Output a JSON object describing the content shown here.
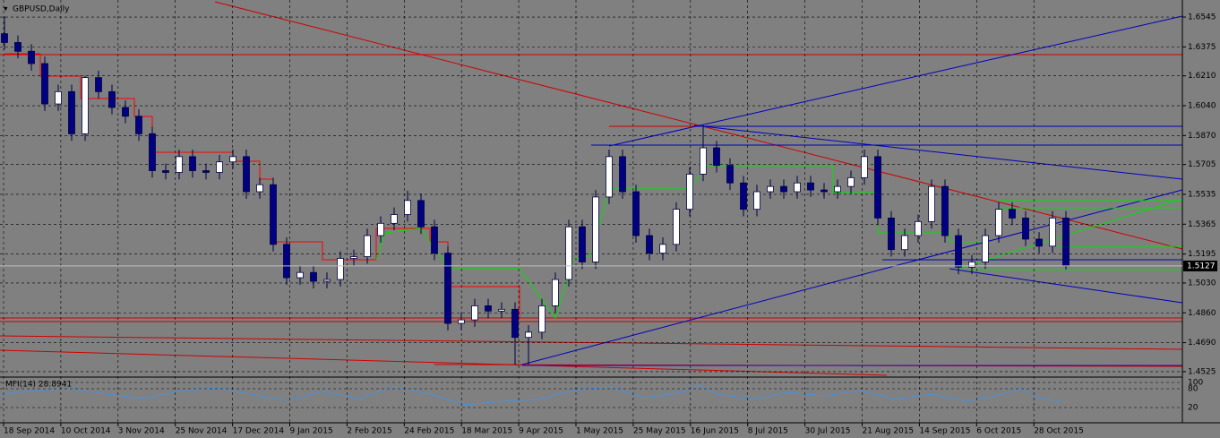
{
  "chart_data": {
    "type": "candlestick",
    "title": "GBPUSD,Daily",
    "x_tick_labels": [
      "18 Sep 2014",
      "10 Oct 2014",
      "3 Nov 2014",
      "25 Nov 2014",
      "17 Dec 2014",
      "9 Jan 2015",
      "2 Feb 2015",
      "24 Feb 2015",
      "18 Mar 2015",
      "9 Apr 2015",
      "1 May 2015",
      "25 May 2015",
      "16 Jun 2015",
      "8 Jul 2015",
      "30 Jul 2015",
      "21 Aug 2015",
      "14 Sep 2015",
      "6 Oct 2015",
      "28 Oct 2015"
    ],
    "open": [
      1.645,
      1.64,
      1.635,
      1.628,
      1.605,
      1.612,
      1.588,
      1.62,
      1.612,
      1.603,
      1.598,
      1.588,
      1.567,
      1.566,
      1.575,
      1.567,
      1.566,
      1.572,
      1.575,
      1.555,
      1.559,
      1.525,
      1.506,
      1.509,
      1.504,
      1.505,
      1.517,
      1.518,
      1.53,
      1.537,
      1.542,
      1.55,
      1.535,
      1.52,
      1.48,
      1.482,
      1.49,
      1.487,
      1.488,
      1.472,
      1.475,
      1.49,
      1.505,
      1.535,
      1.515,
      1.552,
      1.575,
      1.555,
      1.53,
      1.52,
      1.525,
      1.545,
      1.565,
      1.58,
      1.57,
      1.56,
      1.545,
      1.555,
      1.558,
      1.555,
      1.56,
      1.556,
      1.555,
      1.558,
      1.563,
      1.575,
      1.54,
      1.522,
      1.53,
      1.538,
      1.558,
      1.53,
      1.512,
      1.515,
      1.53,
      1.545,
      1.54,
      1.528,
      1.524,
      1.54
    ],
    "high": [
      1.655,
      1.644,
      1.639,
      1.632,
      1.616,
      1.616,
      1.621,
      1.624,
      1.616,
      1.607,
      1.602,
      1.592,
      1.571,
      1.579,
      1.579,
      1.571,
      1.576,
      1.579,
      1.579,
      1.563,
      1.563,
      1.529,
      1.513,
      1.513,
      1.509,
      1.521,
      1.522,
      1.534,
      1.541,
      1.546,
      1.5555,
      1.554,
      1.539,
      1.524,
      1.486,
      1.494,
      1.494,
      1.492,
      1.492,
      1.479,
      1.494,
      1.509,
      1.539,
      1.539,
      1.556,
      1.579,
      1.579,
      1.559,
      1.534,
      1.529,
      1.549,
      1.569,
      1.593,
      1.584,
      1.574,
      1.564,
      1.559,
      1.562,
      1.562,
      1.564,
      1.564,
      1.56,
      1.562,
      1.567,
      1.579,
      1.579,
      1.544,
      1.534,
      1.542,
      1.562,
      1.562,
      1.534,
      1.519,
      1.534,
      1.549,
      1.549,
      1.544,
      1.532,
      1.544,
      1.544
    ],
    "low": [
      1.636,
      1.631,
      1.624,
      1.601,
      1.601,
      1.584,
      1.584,
      1.608,
      1.599,
      1.594,
      1.584,
      1.563,
      1.562,
      1.562,
      1.563,
      1.562,
      1.562,
      1.568,
      1.551,
      1.551,
      1.521,
      1.502,
      1.502,
      1.5,
      1.5,
      1.501,
      1.513,
      1.514,
      1.526,
      1.533,
      1.538,
      1.531,
      1.516,
      1.476,
      1.476,
      1.478,
      1.483,
      1.483,
      1.4565,
      1.4565,
      1.471,
      1.486,
      1.501,
      1.511,
      1.511,
      1.548,
      1.551,
      1.526,
      1.516,
      1.516,
      1.521,
      1.541,
      1.561,
      1.566,
      1.556,
      1.541,
      1.541,
      1.551,
      1.551,
      1.551,
      1.552,
      1.551,
      1.551,
      1.554,
      1.559,
      1.536,
      1.518,
      1.518,
      1.526,
      1.534,
      1.526,
      1.508,
      1.508,
      1.511,
      1.526,
      1.536,
      1.524,
      1.52,
      1.52,
      1.5107
    ],
    "close": [
      1.64,
      1.635,
      1.628,
      1.605,
      1.612,
      1.588,
      1.62,
      1.612,
      1.603,
      1.598,
      1.588,
      1.567,
      1.566,
      1.575,
      1.567,
      1.566,
      1.572,
      1.575,
      1.555,
      1.559,
      1.525,
      1.506,
      1.509,
      1.504,
      1.505,
      1.517,
      1.518,
      1.53,
      1.537,
      1.542,
      1.55,
      1.535,
      1.52,
      1.48,
      1.482,
      1.49,
      1.487,
      1.488,
      1.472,
      1.475,
      1.49,
      1.505,
      1.535,
      1.515,
      1.552,
      1.575,
      1.555,
      1.53,
      1.52,
      1.525,
      1.545,
      1.565,
      1.58,
      1.57,
      1.56,
      1.545,
      1.555,
      1.558,
      1.555,
      1.56,
      1.556,
      1.555,
      1.558,
      1.563,
      1.575,
      1.54,
      1.522,
      1.53,
      1.538,
      1.558,
      1.53,
      1.512,
      1.515,
      1.53,
      1.545,
      1.54,
      1.528,
      1.524,
      1.54,
      1.5127
    ],
    "ylim": [
      1.4499,
      1.6632
    ],
    "yticks": [
      1.6545,
      1.6375,
      {
        "value": 1.621,
        "label": "1.6210"
      },
      {
        "value": 1.604,
        "label": "1.6040"
      },
      {
        "value": 1.587,
        "label": "1.5870"
      },
      1.5705,
      1.5535,
      1.5365,
      1.5195,
      {
        "value": 1.503,
        "label": "1.5030"
      },
      {
        "value": 1.486,
        "label": "1.4860"
      },
      {
        "value": 1.469,
        "label": "1.4690"
      },
      1.4525
    ],
    "last_price": 1.5127,
    "grid": true,
    "bull_color": "#ffffff",
    "bear_color": "#000080",
    "indicator": {
      "label": "MFI(14) 28.8941",
      "ylim": [
        0,
        100
      ],
      "yticks": [
        100,
        80,
        20
      ]
    }
  }
}
